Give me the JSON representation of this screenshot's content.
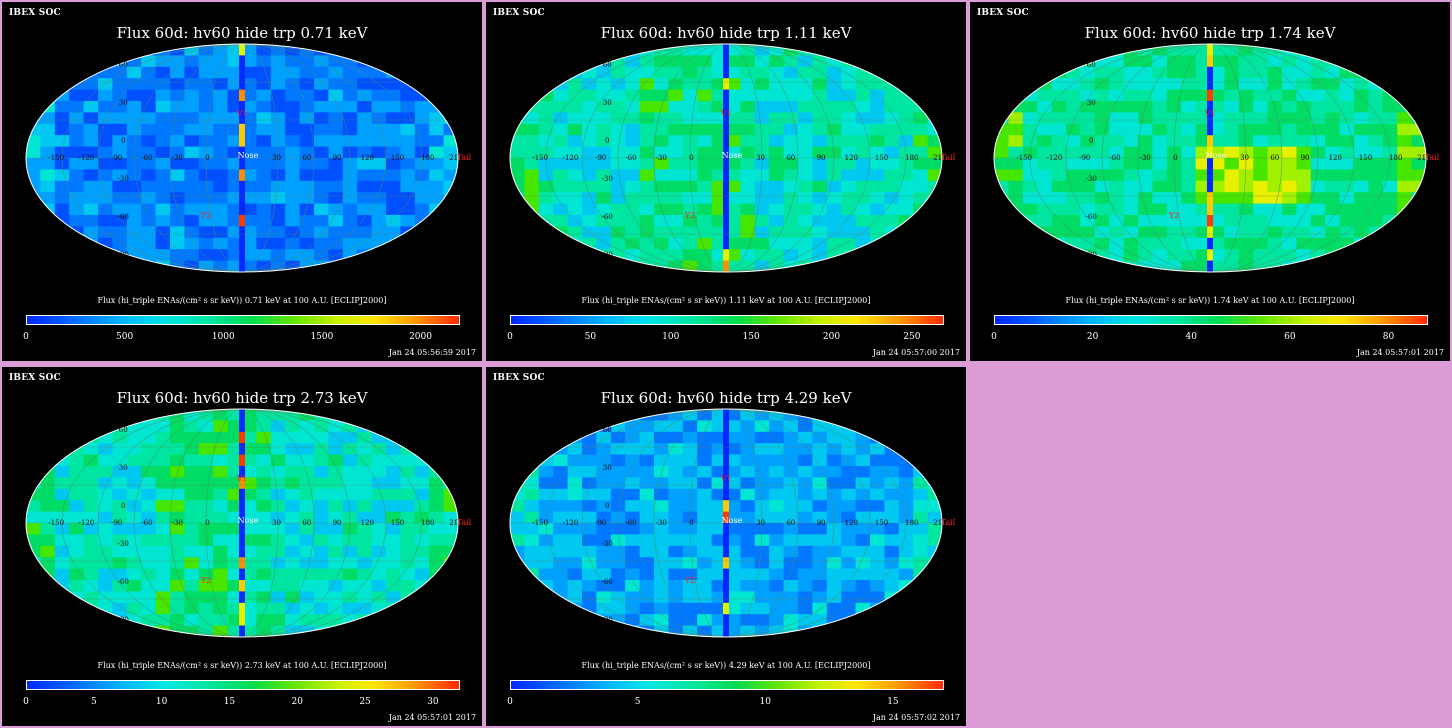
{
  "panels": [
    {
      "brand": "IBEX SOC",
      "title": "Flux 60d: hv60 hide trp 0.71 keV",
      "caption": "Flux (hi_triple ENAs/(cm² s sr keV)) 0.71 keV at 100 A.U. [ECLIPJ2000]",
      "ticks": [
        "0",
        "500",
        "1000",
        "1500",
        "2000"
      ],
      "timestamp": "Jan 24 05:56:59 2017",
      "theme": "blue",
      "show_tail": true
    },
    {
      "brand": "IBEX SOC",
      "title": "Flux 60d: hv60 hide trp 1.11 keV",
      "caption": "Flux (hi_triple ENAs/(cm² s sr keV)) 1.11 keV at 100 A.U. [ECLIPJ2000]",
      "ticks": [
        "0",
        "50",
        "100",
        "150",
        "200",
        "250"
      ],
      "timestamp": "Jan 24 05:57:00 2017",
      "theme": "green",
      "show_tail": true
    },
    {
      "brand": "IBEX SOC",
      "title": "Flux 60d: hv60 hide trp 1.74 keV",
      "caption": "Flux (hi_triple ENAs/(cm² s sr keV)) 1.74 keV at 100 A.U. [ECLIPJ2000]",
      "ticks": [
        "0",
        "20",
        "40",
        "60",
        "80"
      ],
      "timestamp": "Jan 24 05:57:01 2017",
      "theme": "hot",
      "show_tail": true
    },
    {
      "brand": "IBEX SOC",
      "title": "Flux 60d: hv60 hide trp 2.73 keV",
      "caption": "Flux (hi_triple ENAs/(cm² s sr keV)) 2.73 keV at 100 A.U. [ECLIPJ2000]",
      "ticks": [
        "0",
        "5",
        "10",
        "15",
        "20",
        "25",
        "30"
      ],
      "timestamp": "Jan 24 05:57:01 2017",
      "theme": "green",
      "show_tail": true
    },
    {
      "brand": "IBEX SOC",
      "title": "Flux 60d: hv60 hide trp 4.29 keV",
      "caption": "Flux (hi_triple ENAs/(cm² s sr keV)) 4.29 keV at 100 A.U. [ECLIPJ2000]",
      "ticks": [
        "0",
        "5",
        "10",
        "15"
      ],
      "timestamp": "Jan 24 05:57:02 2017",
      "theme": "blue2",
      "show_tail": true
    }
  ],
  "map_labels": {
    "nose": "Nose",
    "tail": "Tail",
    "v1": "V1",
    "v2": "Y2",
    "lon": [
      "-150",
      "-120",
      "-90",
      "-60",
      "-30",
      "0",
      "30",
      "60",
      "90",
      "120",
      "150",
      "180",
      "210"
    ],
    "lat": [
      "60",
      "30",
      "0",
      "-30",
      "-60",
      "-90"
    ]
  },
  "colors": {
    "background": "#dc9cd8",
    "panel_bg": "#000000",
    "label_red": "#ff2020",
    "grid_green": "#40c040"
  }
}
